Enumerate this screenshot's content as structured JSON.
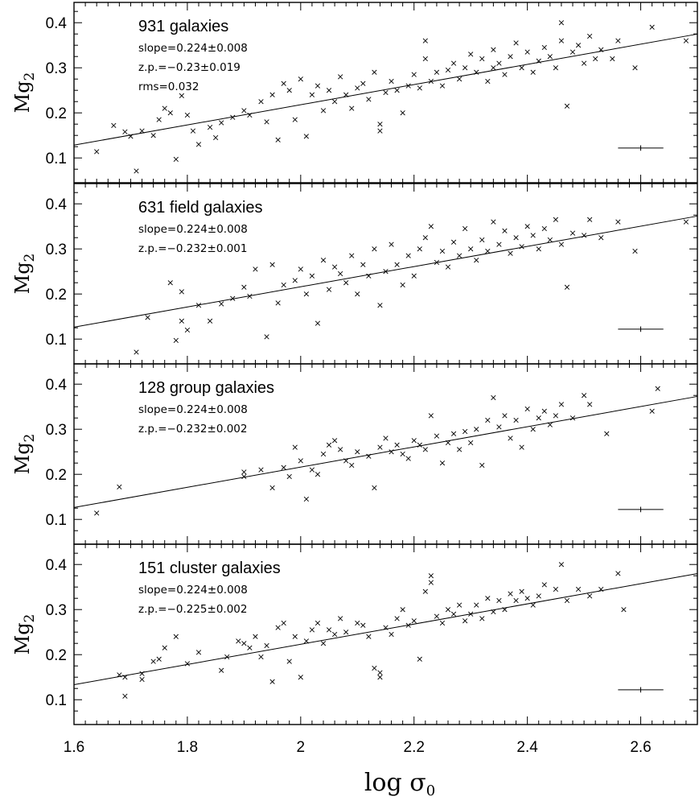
{
  "chart_data": {
    "type": "scatter",
    "xlabel": "log σ0",
    "ylabel": "Mg2",
    "xlim": [
      1.6,
      2.7
    ],
    "ylim": [
      0.045,
      0.445
    ],
    "x_ticks": [
      "1.6",
      "1.8",
      "2",
      "2.2",
      "2.4",
      "2.6"
    ],
    "y_ticks": [
      "0.1",
      "0.2",
      "0.3",
      "0.4"
    ],
    "error_bar": {
      "x": 2.6,
      "y": 0.122,
      "dx": 0.04,
      "dy": 0.006
    },
    "panels": [
      {
        "title": "931  galaxies",
        "stats": [
          "slope=0.224±0.008",
          "z.p.=−0.23±0.019",
          "rms=0.032"
        ],
        "fit": {
          "slope": 0.224,
          "intercept": -0.23
        },
        "points": [
          [
            1.64,
            0.114
          ],
          [
            1.67,
            0.172
          ],
          [
            1.69,
            0.158
          ],
          [
            1.7,
            0.148
          ],
          [
            1.72,
            0.16
          ],
          [
            1.71,
            0.071
          ],
          [
            1.74,
            0.15
          ],
          [
            1.75,
            0.185
          ],
          [
            1.76,
            0.21
          ],
          [
            1.77,
            0.2
          ],
          [
            1.79,
            0.238
          ],
          [
            1.78,
            0.097
          ],
          [
            1.8,
            0.195
          ],
          [
            1.81,
            0.16
          ],
          [
            1.82,
            0.13
          ],
          [
            1.84,
            0.168
          ],
          [
            1.85,
            0.145
          ],
          [
            1.86,
            0.178
          ],
          [
            1.88,
            0.19
          ],
          [
            1.9,
            0.205
          ],
          [
            1.91,
            0.195
          ],
          [
            1.93,
            0.225
          ],
          [
            1.94,
            0.18
          ],
          [
            1.95,
            0.24
          ],
          [
            1.96,
            0.14
          ],
          [
            1.97,
            0.265
          ],
          [
            1.98,
            0.25
          ],
          [
            1.99,
            0.185
          ],
          [
            2.0,
            0.275
          ],
          [
            2.01,
            0.148
          ],
          [
            2.02,
            0.24
          ],
          [
            2.03,
            0.26
          ],
          [
            2.04,
            0.205
          ],
          [
            2.05,
            0.25
          ],
          [
            2.06,
            0.225
          ],
          [
            2.07,
            0.28
          ],
          [
            2.08,
            0.24
          ],
          [
            2.09,
            0.21
          ],
          [
            2.1,
            0.255
          ],
          [
            2.11,
            0.265
          ],
          [
            2.12,
            0.23
          ],
          [
            2.13,
            0.29
          ],
          [
            2.14,
            0.175
          ],
          [
            2.14,
            0.16
          ],
          [
            2.15,
            0.245
          ],
          [
            2.16,
            0.27
          ],
          [
            2.17,
            0.25
          ],
          [
            2.18,
            0.2
          ],
          [
            2.19,
            0.26
          ],
          [
            2.2,
            0.285
          ],
          [
            2.21,
            0.255
          ],
          [
            2.22,
            0.32
          ],
          [
            2.22,
            0.36
          ],
          [
            2.23,
            0.27
          ],
          [
            2.24,
            0.29
          ],
          [
            2.25,
            0.26
          ],
          [
            2.26,
            0.295
          ],
          [
            2.27,
            0.31
          ],
          [
            2.28,
            0.275
          ],
          [
            2.29,
            0.3
          ],
          [
            2.3,
            0.33
          ],
          [
            2.31,
            0.29
          ],
          [
            2.32,
            0.32
          ],
          [
            2.33,
            0.27
          ],
          [
            2.34,
            0.34
          ],
          [
            2.34,
            0.3
          ],
          [
            2.35,
            0.31
          ],
          [
            2.36,
            0.285
          ],
          [
            2.37,
            0.325
          ],
          [
            2.38,
            0.355
          ],
          [
            2.39,
            0.3
          ],
          [
            2.4,
            0.335
          ],
          [
            2.41,
            0.29
          ],
          [
            2.42,
            0.315
          ],
          [
            2.43,
            0.345
          ],
          [
            2.44,
            0.325
          ],
          [
            2.45,
            0.3
          ],
          [
            2.46,
            0.36
          ],
          [
            2.46,
            0.4
          ],
          [
            2.47,
            0.215
          ],
          [
            2.48,
            0.335
          ],
          [
            2.49,
            0.35
          ],
          [
            2.5,
            0.31
          ],
          [
            2.51,
            0.37
          ],
          [
            2.52,
            0.32
          ],
          [
            2.53,
            0.34
          ],
          [
            2.55,
            0.32
          ],
          [
            2.56,
            0.36
          ],
          [
            2.59,
            0.3
          ],
          [
            2.62,
            0.39
          ],
          [
            2.68,
            0.36
          ]
        ]
      },
      {
        "title": "631 field galaxies",
        "stats": [
          "slope=0.224±0.008",
          "z.p.=−0.232±0.001"
        ],
        "fit": {
          "slope": 0.224,
          "intercept": -0.232
        },
        "points": [
          [
            1.71,
            0.071
          ],
          [
            1.73,
            0.148
          ],
          [
            1.77,
            0.225
          ],
          [
            1.78,
            0.097
          ],
          [
            1.79,
            0.205
          ],
          [
            1.79,
            0.14
          ],
          [
            1.8,
            0.12
          ],
          [
            1.82,
            0.175
          ],
          [
            1.84,
            0.14
          ],
          [
            1.86,
            0.178
          ],
          [
            1.88,
            0.19
          ],
          [
            1.9,
            0.215
          ],
          [
            1.91,
            0.195
          ],
          [
            1.92,
            0.255
          ],
          [
            1.94,
            0.105
          ],
          [
            1.95,
            0.265
          ],
          [
            1.96,
            0.18
          ],
          [
            1.97,
            0.22
          ],
          [
            1.99,
            0.23
          ],
          [
            2.0,
            0.255
          ],
          [
            2.01,
            0.2
          ],
          [
            2.02,
            0.24
          ],
          [
            2.03,
            0.135
          ],
          [
            2.04,
            0.275
          ],
          [
            2.05,
            0.21
          ],
          [
            2.06,
            0.26
          ],
          [
            2.07,
            0.245
          ],
          [
            2.08,
            0.225
          ],
          [
            2.09,
            0.285
          ],
          [
            2.1,
            0.2
          ],
          [
            2.11,
            0.265
          ],
          [
            2.12,
            0.24
          ],
          [
            2.13,
            0.3
          ],
          [
            2.14,
            0.175
          ],
          [
            2.15,
            0.25
          ],
          [
            2.16,
            0.31
          ],
          [
            2.17,
            0.265
          ],
          [
            2.18,
            0.22
          ],
          [
            2.19,
            0.285
          ],
          [
            2.2,
            0.24
          ],
          [
            2.21,
            0.3
          ],
          [
            2.22,
            0.325
          ],
          [
            2.23,
            0.35
          ],
          [
            2.24,
            0.27
          ],
          [
            2.25,
            0.295
          ],
          [
            2.26,
            0.26
          ],
          [
            2.27,
            0.315
          ],
          [
            2.28,
            0.285
          ],
          [
            2.29,
            0.345
          ],
          [
            2.3,
            0.3
          ],
          [
            2.31,
            0.275
          ],
          [
            2.32,
            0.32
          ],
          [
            2.33,
            0.295
          ],
          [
            2.34,
            0.36
          ],
          [
            2.35,
            0.31
          ],
          [
            2.36,
            0.34
          ],
          [
            2.37,
            0.29
          ],
          [
            2.38,
            0.325
          ],
          [
            2.39,
            0.305
          ],
          [
            2.4,
            0.35
          ],
          [
            2.41,
            0.33
          ],
          [
            2.42,
            0.3
          ],
          [
            2.43,
            0.345
          ],
          [
            2.44,
            0.32
          ],
          [
            2.45,
            0.365
          ],
          [
            2.46,
            0.31
          ],
          [
            2.47,
            0.215
          ],
          [
            2.48,
            0.335
          ],
          [
            2.5,
            0.33
          ],
          [
            2.51,
            0.365
          ],
          [
            2.53,
            0.325
          ],
          [
            2.56,
            0.36
          ],
          [
            2.59,
            0.295
          ],
          [
            2.68,
            0.36
          ]
        ]
      },
      {
        "title": "128 group galaxies",
        "stats": [
          "slope=0.224±0.008",
          "z.p.=−0.232±0.002"
        ],
        "fit": {
          "slope": 0.224,
          "intercept": -0.232
        },
        "points": [
          [
            1.64,
            0.114
          ],
          [
            1.68,
            0.172
          ],
          [
            1.9,
            0.205
          ],
          [
            1.9,
            0.195
          ],
          [
            1.93,
            0.21
          ],
          [
            1.95,
            0.17
          ],
          [
            1.97,
            0.215
          ],
          [
            1.98,
            0.195
          ],
          [
            1.99,
            0.26
          ],
          [
            2.0,
            0.23
          ],
          [
            2.01,
            0.145
          ],
          [
            2.02,
            0.21
          ],
          [
            2.03,
            0.2
          ],
          [
            2.04,
            0.245
          ],
          [
            2.05,
            0.265
          ],
          [
            2.06,
            0.275
          ],
          [
            2.07,
            0.255
          ],
          [
            2.08,
            0.23
          ],
          [
            2.09,
            0.22
          ],
          [
            2.1,
            0.25
          ],
          [
            2.12,
            0.24
          ],
          [
            2.13,
            0.17
          ],
          [
            2.14,
            0.26
          ],
          [
            2.15,
            0.28
          ],
          [
            2.16,
            0.25
          ],
          [
            2.17,
            0.265
          ],
          [
            2.18,
            0.245
          ],
          [
            2.19,
            0.235
          ],
          [
            2.2,
            0.275
          ],
          [
            2.21,
            0.265
          ],
          [
            2.22,
            0.255
          ],
          [
            2.23,
            0.33
          ],
          [
            2.24,
            0.285
          ],
          [
            2.25,
            0.225
          ],
          [
            2.26,
            0.27
          ],
          [
            2.27,
            0.29
          ],
          [
            2.28,
            0.255
          ],
          [
            2.29,
            0.295
          ],
          [
            2.3,
            0.27
          ],
          [
            2.31,
            0.3
          ],
          [
            2.32,
            0.22
          ],
          [
            2.33,
            0.32
          ],
          [
            2.34,
            0.37
          ],
          [
            2.35,
            0.305
          ],
          [
            2.36,
            0.33
          ],
          [
            2.37,
            0.28
          ],
          [
            2.38,
            0.32
          ],
          [
            2.39,
            0.26
          ],
          [
            2.4,
            0.345
          ],
          [
            2.41,
            0.3
          ],
          [
            2.42,
            0.325
          ],
          [
            2.43,
            0.34
          ],
          [
            2.44,
            0.31
          ],
          [
            2.45,
            0.33
          ],
          [
            2.46,
            0.355
          ],
          [
            2.48,
            0.325
          ],
          [
            2.5,
            0.375
          ],
          [
            2.51,
            0.355
          ],
          [
            2.54,
            0.29
          ],
          [
            2.62,
            0.34
          ],
          [
            2.63,
            0.39
          ]
        ]
      },
      {
        "title": "151 cluster galaxies",
        "stats": [
          "slope=0.224±0.008",
          "z.p.=−0.225±0.002"
        ],
        "fit": {
          "slope": 0.224,
          "intercept": -0.225
        },
        "points": [
          [
            1.68,
            0.155
          ],
          [
            1.69,
            0.108
          ],
          [
            1.69,
            0.15
          ],
          [
            1.72,
            0.158
          ],
          [
            1.72,
            0.145
          ],
          [
            1.74,
            0.185
          ],
          [
            1.75,
            0.19
          ],
          [
            1.76,
            0.215
          ],
          [
            1.78,
            0.24
          ],
          [
            1.8,
            0.18
          ],
          [
            1.82,
            0.205
          ],
          [
            1.86,
            0.165
          ],
          [
            1.87,
            0.195
          ],
          [
            1.89,
            0.23
          ],
          [
            1.9,
            0.225
          ],
          [
            1.91,
            0.215
          ],
          [
            1.92,
            0.24
          ],
          [
            1.93,
            0.195
          ],
          [
            1.94,
            0.22
          ],
          [
            1.95,
            0.14
          ],
          [
            1.96,
            0.26
          ],
          [
            1.97,
            0.27
          ],
          [
            1.98,
            0.185
          ],
          [
            1.99,
            0.24
          ],
          [
            2.0,
            0.15
          ],
          [
            2.01,
            0.23
          ],
          [
            2.02,
            0.255
          ],
          [
            2.03,
            0.27
          ],
          [
            2.04,
            0.225
          ],
          [
            2.05,
            0.255
          ],
          [
            2.06,
            0.245
          ],
          [
            2.07,
            0.28
          ],
          [
            2.08,
            0.25
          ],
          [
            2.1,
            0.27
          ],
          [
            2.11,
            0.265
          ],
          [
            2.12,
            0.24
          ],
          [
            2.13,
            0.17
          ],
          [
            2.14,
            0.16
          ],
          [
            2.14,
            0.15
          ],
          [
            2.15,
            0.26
          ],
          [
            2.16,
            0.245
          ],
          [
            2.17,
            0.28
          ],
          [
            2.18,
            0.3
          ],
          [
            2.19,
            0.265
          ],
          [
            2.2,
            0.275
          ],
          [
            2.21,
            0.19
          ],
          [
            2.22,
            0.34
          ],
          [
            2.23,
            0.36
          ],
          [
            2.23,
            0.375
          ],
          [
            2.24,
            0.285
          ],
          [
            2.25,
            0.27
          ],
          [
            2.26,
            0.3
          ],
          [
            2.27,
            0.29
          ],
          [
            2.28,
            0.31
          ],
          [
            2.29,
            0.275
          ],
          [
            2.3,
            0.29
          ],
          [
            2.31,
            0.31
          ],
          [
            2.32,
            0.28
          ],
          [
            2.33,
            0.325
          ],
          [
            2.34,
            0.295
          ],
          [
            2.35,
            0.32
          ],
          [
            2.36,
            0.3
          ],
          [
            2.37,
            0.335
          ],
          [
            2.38,
            0.32
          ],
          [
            2.39,
            0.34
          ],
          [
            2.4,
            0.325
          ],
          [
            2.41,
            0.31
          ],
          [
            2.42,
            0.33
          ],
          [
            2.43,
            0.355
          ],
          [
            2.45,
            0.345
          ],
          [
            2.46,
            0.4
          ],
          [
            2.47,
            0.32
          ],
          [
            2.49,
            0.345
          ],
          [
            2.51,
            0.33
          ],
          [
            2.53,
            0.345
          ],
          [
            2.56,
            0.38
          ],
          [
            2.57,
            0.3
          ]
        ]
      }
    ]
  }
}
